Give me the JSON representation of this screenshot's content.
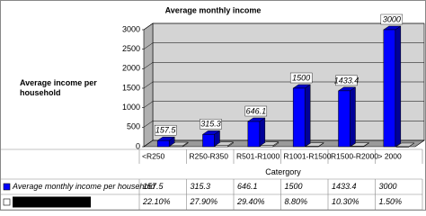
{
  "chart_data": {
    "type": "bar3d",
    "title": "Average monthly income",
    "y_label": "Average income per household",
    "x_label": "Catergory",
    "categories": [
      "<R250",
      "R250-R350",
      "R501-R1000",
      "R1001-R1500",
      "R1500-R2000",
      "> 2000"
    ],
    "series": [
      {
        "name": "Average monthly income per household",
        "color": "#0000ff",
        "values": [
          157.5,
          315.3,
          646.1,
          1500,
          1433.4,
          3000
        ]
      },
      {
        "color": "#ffffff",
        "values": [
          22.1,
          27.9,
          29.4,
          8.8,
          10.3,
          1.5
        ],
        "value_labels": [
          "22.10%",
          "27.90%",
          "29.40%",
          "8.80%",
          "10.30%",
          "1.50%"
        ]
      }
    ],
    "ylim": [
      0,
      3000
    ],
    "yticks": [
      0,
      500,
      1000,
      1500,
      2000,
      2500,
      3000
    ],
    "grid": true
  }
}
